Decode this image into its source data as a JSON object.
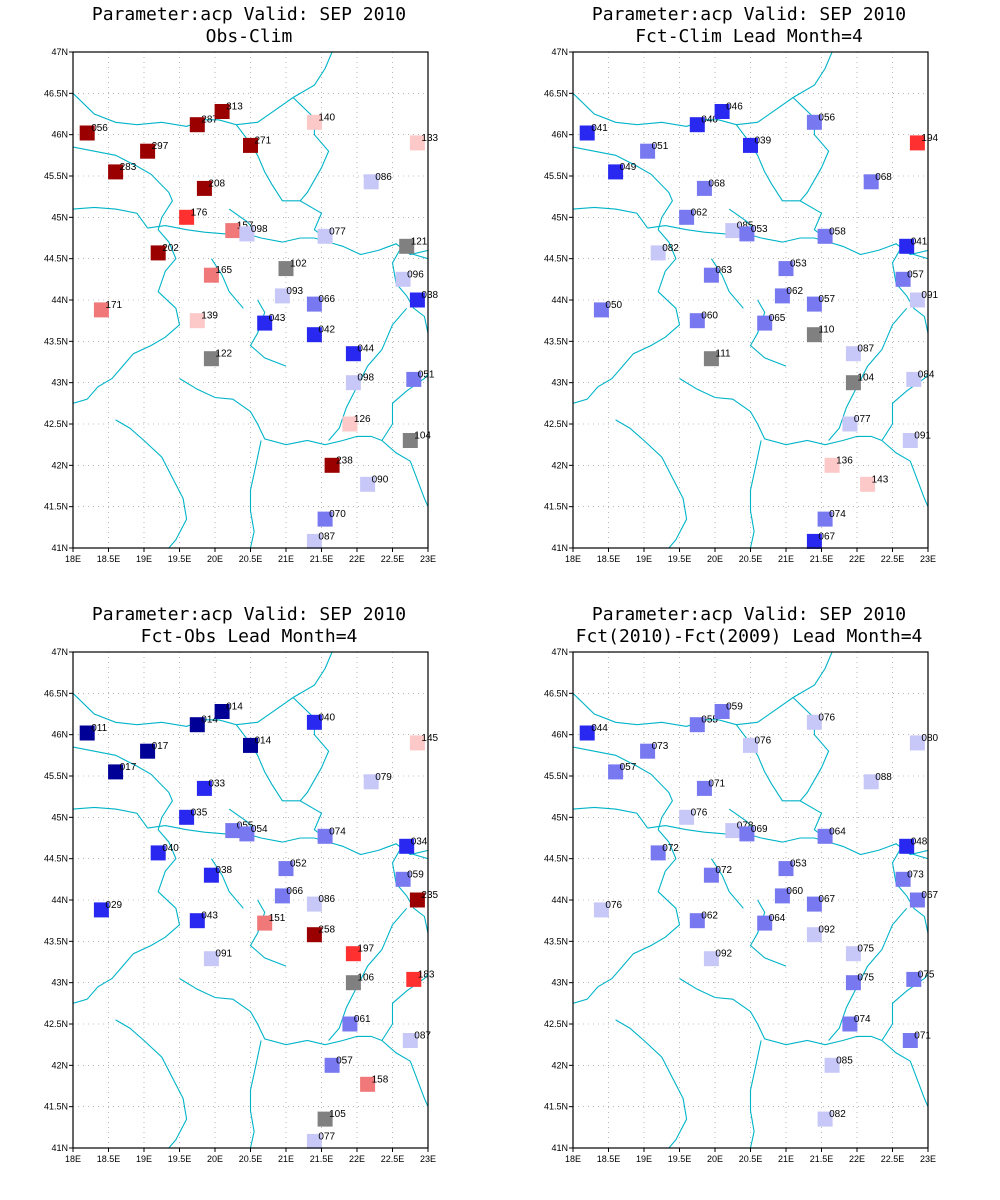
{
  "panels": [
    {
      "title1": "Parameter:acp Valid: SEP 2010",
      "title2": "Obs-Clim",
      "points": [
        {
          "lon": 18.2,
          "lat": 46.02,
          "label": "056",
          "color": "#9b0000"
        },
        {
          "lon": 18.6,
          "lat": 45.55,
          "label": "283",
          "color": "#9b0000"
        },
        {
          "lon": 19.05,
          "lat": 45.8,
          "label": "297",
          "color": "#9b0000"
        },
        {
          "lon": 19.75,
          "lat": 46.12,
          "label": "287",
          "color": "#9b0000"
        },
        {
          "lon": 20.1,
          "lat": 46.28,
          "label": "313",
          "color": "#9b0000"
        },
        {
          "lon": 20.5,
          "lat": 45.87,
          "label": "271",
          "color": "#9b0000"
        },
        {
          "lon": 19.85,
          "lat": 45.35,
          "label": "208",
          "color": "#9b0000"
        },
        {
          "lon": 19.6,
          "lat": 45.0,
          "label": "176",
          "color": "#ff3030"
        },
        {
          "lon": 20.25,
          "lat": 44.84,
          "label": "157",
          "color": "#f07878"
        },
        {
          "lon": 20.45,
          "lat": 44.8,
          "label": "098",
          "color": "#c8c8f8"
        },
        {
          "lon": 19.2,
          "lat": 44.57,
          "label": "202",
          "color": "#9b0000"
        },
        {
          "lon": 19.95,
          "lat": 44.3,
          "label": "165",
          "color": "#f07878"
        },
        {
          "lon": 21.4,
          "lat": 46.15,
          "label": "140",
          "color": "#fcc8c8"
        },
        {
          "lon": 22.85,
          "lat": 45.9,
          "label": "133",
          "color": "#fcc8c8"
        },
        {
          "lon": 22.2,
          "lat": 45.43,
          "label": "086",
          "color": "#c8c8f8"
        },
        {
          "lon": 21.55,
          "lat": 44.77,
          "label": "077",
          "color": "#c8c8f8"
        },
        {
          "lon": 22.7,
          "lat": 44.65,
          "label": "121",
          "color": "#808080"
        },
        {
          "lon": 21.0,
          "lat": 44.38,
          "label": "102",
          "color": "#808080"
        },
        {
          "lon": 22.65,
          "lat": 44.25,
          "label": "096",
          "color": "#c8c8f8"
        },
        {
          "lon": 22.85,
          "lat": 44.0,
          "label": "038",
          "color": "#2828f0"
        },
        {
          "lon": 20.95,
          "lat": 44.05,
          "label": "093",
          "color": "#c8c8f8"
        },
        {
          "lon": 21.4,
          "lat": 43.95,
          "label": "066",
          "color": "#7878f0"
        },
        {
          "lon": 18.4,
          "lat": 43.88,
          "label": "171",
          "color": "#f07878"
        },
        {
          "lon": 19.75,
          "lat": 43.75,
          "label": "139",
          "color": "#fcc8c8"
        },
        {
          "lon": 20.7,
          "lat": 43.72,
          "label": "043",
          "color": "#2828f0"
        },
        {
          "lon": 21.4,
          "lat": 43.58,
          "label": "042",
          "color": "#2828f0"
        },
        {
          "lon": 19.95,
          "lat": 43.29,
          "label": "122",
          "color": "#808080"
        },
        {
          "lon": 21.95,
          "lat": 43.35,
          "label": "044",
          "color": "#2828f0"
        },
        {
          "lon": 21.95,
          "lat": 43.0,
          "label": "098",
          "color": "#c8c8f8"
        },
        {
          "lon": 22.8,
          "lat": 43.04,
          "label": "051",
          "color": "#7878f0"
        },
        {
          "lon": 21.9,
          "lat": 42.5,
          "label": "126",
          "color": "#fcc8c8"
        },
        {
          "lon": 22.75,
          "lat": 42.3,
          "label": "104",
          "color": "#808080"
        },
        {
          "lon": 21.65,
          "lat": 42.0,
          "label": "238",
          "color": "#9b0000"
        },
        {
          "lon": 22.15,
          "lat": 41.77,
          "label": "090",
          "color": "#c8c8f8"
        },
        {
          "lon": 21.55,
          "lat": 41.35,
          "label": "070",
          "color": "#7878f0"
        },
        {
          "lon": 21.4,
          "lat": 41.08,
          "label": "087",
          "color": "#c8c8f8"
        }
      ]
    },
    {
      "title1": "Parameter:acp Valid: SEP 2010",
      "title2": "Fct-Clim Lead Month=4",
      "points": [
        {
          "lon": 18.2,
          "lat": 46.02,
          "label": "041",
          "color": "#2828f0"
        },
        {
          "lon": 18.6,
          "lat": 45.55,
          "label": "049",
          "color": "#2828f0"
        },
        {
          "lon": 19.05,
          "lat": 45.8,
          "label": "051",
          "color": "#7878f0"
        },
        {
          "lon": 19.75,
          "lat": 46.12,
          "label": "040",
          "color": "#2828f0"
        },
        {
          "lon": 20.1,
          "lat": 46.28,
          "label": "046",
          "color": "#2828f0"
        },
        {
          "lon": 20.5,
          "lat": 45.87,
          "label": "039",
          "color": "#2828f0"
        },
        {
          "lon": 19.85,
          "lat": 45.35,
          "label": "068",
          "color": "#7878f0"
        },
        {
          "lon": 19.6,
          "lat": 45.0,
          "label": "062",
          "color": "#7878f0"
        },
        {
          "lon": 20.25,
          "lat": 44.84,
          "label": "085",
          "color": "#c8c8f8"
        },
        {
          "lon": 20.45,
          "lat": 44.8,
          "label": "053",
          "color": "#7878f0"
        },
        {
          "lon": 19.2,
          "lat": 44.57,
          "label": "082",
          "color": "#c8c8f8"
        },
        {
          "lon": 19.95,
          "lat": 44.3,
          "label": "063",
          "color": "#7878f0"
        },
        {
          "lon": 21.4,
          "lat": 46.15,
          "label": "056",
          "color": "#7878f0"
        },
        {
          "lon": 22.85,
          "lat": 45.9,
          "label": "194",
          "color": "#ff3030"
        },
        {
          "lon": 22.2,
          "lat": 45.43,
          "label": "068",
          "color": "#7878f0"
        },
        {
          "lon": 21.55,
          "lat": 44.77,
          "label": "058",
          "color": "#7878f0"
        },
        {
          "lon": 22.7,
          "lat": 44.65,
          "label": "041",
          "color": "#2828f0"
        },
        {
          "lon": 21.0,
          "lat": 44.38,
          "label": "053",
          "color": "#7878f0"
        },
        {
          "lon": 22.65,
          "lat": 44.25,
          "label": "057",
          "color": "#7878f0"
        },
        {
          "lon": 22.85,
          "lat": 44.0,
          "label": "091",
          "color": "#c8c8f8"
        },
        {
          "lon": 20.95,
          "lat": 44.05,
          "label": "062",
          "color": "#7878f0"
        },
        {
          "lon": 21.4,
          "lat": 43.95,
          "label": "057",
          "color": "#7878f0"
        },
        {
          "lon": 18.4,
          "lat": 43.88,
          "label": "050",
          "color": "#7878f0"
        },
        {
          "lon": 19.75,
          "lat": 43.75,
          "label": "060",
          "color": "#7878f0"
        },
        {
          "lon": 20.7,
          "lat": 43.72,
          "label": "065",
          "color": "#7878f0"
        },
        {
          "lon": 21.4,
          "lat": 43.58,
          "label": "110",
          "color": "#808080"
        },
        {
          "lon": 19.95,
          "lat": 43.29,
          "label": "111",
          "color": "#808080"
        },
        {
          "lon": 21.95,
          "lat": 43.35,
          "label": "087",
          "color": "#c8c8f8"
        },
        {
          "lon": 21.95,
          "lat": 43.0,
          "label": "104",
          "color": "#808080"
        },
        {
          "lon": 22.8,
          "lat": 43.04,
          "label": "084",
          "color": "#c8c8f8"
        },
        {
          "lon": 21.9,
          "lat": 42.5,
          "label": "077",
          "color": "#c8c8f8"
        },
        {
          "lon": 22.75,
          "lat": 42.3,
          "label": "091",
          "color": "#c8c8f8"
        },
        {
          "lon": 21.65,
          "lat": 42.0,
          "label": "136",
          "color": "#fcc8c8"
        },
        {
          "lon": 22.15,
          "lat": 41.77,
          "label": "143",
          "color": "#fcc8c8"
        },
        {
          "lon": 21.55,
          "lat": 41.35,
          "label": "074",
          "color": "#7878f0"
        },
        {
          "lon": 21.4,
          "lat": 41.08,
          "label": "067",
          "color": "#2828f0"
        }
      ]
    },
    {
      "title1": "Parameter:acp Valid: SEP 2010",
      "title2": "Fct-Obs Lead Month=4",
      "points": [
        {
          "lon": 18.2,
          "lat": 46.02,
          "label": "011",
          "color": "#000096"
        },
        {
          "lon": 18.6,
          "lat": 45.55,
          "label": "017",
          "color": "#000096"
        },
        {
          "lon": 19.05,
          "lat": 45.8,
          "label": "017",
          "color": "#000096"
        },
        {
          "lon": 19.75,
          "lat": 46.12,
          "label": "014",
          "color": "#000096"
        },
        {
          "lon": 20.1,
          "lat": 46.28,
          "label": "014",
          "color": "#000096"
        },
        {
          "lon": 20.5,
          "lat": 45.87,
          "label": "014",
          "color": "#000096"
        },
        {
          "lon": 19.85,
          "lat": 45.35,
          "label": "033",
          "color": "#2828f0"
        },
        {
          "lon": 19.6,
          "lat": 45.0,
          "label": "035",
          "color": "#2828f0"
        },
        {
          "lon": 20.25,
          "lat": 44.84,
          "label": "055",
          "color": "#7878f0"
        },
        {
          "lon": 20.45,
          "lat": 44.8,
          "label": "054",
          "color": "#7878f0"
        },
        {
          "lon": 19.2,
          "lat": 44.57,
          "label": "040",
          "color": "#2828f0"
        },
        {
          "lon": 19.95,
          "lat": 44.3,
          "label": "038",
          "color": "#2828f0"
        },
        {
          "lon": 21.4,
          "lat": 46.15,
          "label": "040",
          "color": "#2828f0"
        },
        {
          "lon": 22.85,
          "lat": 45.9,
          "label": "145",
          "color": "#fcc8c8"
        },
        {
          "lon": 22.2,
          "lat": 45.43,
          "label": "079",
          "color": "#c8c8f8"
        },
        {
          "lon": 21.55,
          "lat": 44.77,
          "label": "074",
          "color": "#7878f0"
        },
        {
          "lon": 22.7,
          "lat": 44.65,
          "label": "034",
          "color": "#2828f0"
        },
        {
          "lon": 21.0,
          "lat": 44.38,
          "label": "052",
          "color": "#7878f0"
        },
        {
          "lon": 22.65,
          "lat": 44.25,
          "label": "059",
          "color": "#7878f0"
        },
        {
          "lon": 22.85,
          "lat": 44.0,
          "label": "235",
          "color": "#9b0000"
        },
        {
          "lon": 20.95,
          "lat": 44.05,
          "label": "066",
          "color": "#7878f0"
        },
        {
          "lon": 21.4,
          "lat": 43.95,
          "label": "086",
          "color": "#c8c8f8"
        },
        {
          "lon": 18.4,
          "lat": 43.88,
          "label": "029",
          "color": "#2828f0"
        },
        {
          "lon": 19.75,
          "lat": 43.75,
          "label": "043",
          "color": "#2828f0"
        },
        {
          "lon": 20.7,
          "lat": 43.72,
          "label": "151",
          "color": "#f07878"
        },
        {
          "lon": 21.4,
          "lat": 43.58,
          "label": "258",
          "color": "#9b0000"
        },
        {
          "lon": 19.95,
          "lat": 43.29,
          "label": "091",
          "color": "#c8c8f8"
        },
        {
          "lon": 21.95,
          "lat": 43.35,
          "label": "197",
          "color": "#ff3030"
        },
        {
          "lon": 21.95,
          "lat": 43.0,
          "label": "106",
          "color": "#808080"
        },
        {
          "lon": 22.8,
          "lat": 43.04,
          "label": "183",
          "color": "#ff3030"
        },
        {
          "lon": 21.9,
          "lat": 42.5,
          "label": "061",
          "color": "#7878f0"
        },
        {
          "lon": 22.75,
          "lat": 42.3,
          "label": "087",
          "color": "#c8c8f8"
        },
        {
          "lon": 21.65,
          "lat": 42.0,
          "label": "057",
          "color": "#7878f0"
        },
        {
          "lon": 22.15,
          "lat": 41.77,
          "label": "158",
          "color": "#f07878"
        },
        {
          "lon": 21.55,
          "lat": 41.35,
          "label": "105",
          "color": "#808080"
        },
        {
          "lon": 21.4,
          "lat": 41.08,
          "label": "077",
          "color": "#c8c8f8"
        }
      ]
    },
    {
      "title1": "Parameter:acp Valid: SEP 2010",
      "title2": "Fct(2010)-Fct(2009) Lead Month=4",
      "points": [
        {
          "lon": 18.2,
          "lat": 46.02,
          "label": "044",
          "color": "#2828f0"
        },
        {
          "lon": 18.6,
          "lat": 45.55,
          "label": "057",
          "color": "#7878f0"
        },
        {
          "lon": 19.05,
          "lat": 45.8,
          "label": "073",
          "color": "#7878f0"
        },
        {
          "lon": 19.75,
          "lat": 46.12,
          "label": "055",
          "color": "#7878f0"
        },
        {
          "lon": 20.1,
          "lat": 46.28,
          "label": "059",
          "color": "#7878f0"
        },
        {
          "lon": 20.5,
          "lat": 45.87,
          "label": "076",
          "color": "#c8c8f8"
        },
        {
          "lon": 19.85,
          "lat": 45.35,
          "label": "071",
          "color": "#7878f0"
        },
        {
          "lon": 19.6,
          "lat": 45.0,
          "label": "076",
          "color": "#c8c8f8"
        },
        {
          "lon": 20.25,
          "lat": 44.84,
          "label": "078",
          "color": "#c8c8f8"
        },
        {
          "lon": 20.45,
          "lat": 44.8,
          "label": "069",
          "color": "#7878f0"
        },
        {
          "lon": 19.2,
          "lat": 44.57,
          "label": "072",
          "color": "#7878f0"
        },
        {
          "lon": 19.95,
          "lat": 44.3,
          "label": "072",
          "color": "#7878f0"
        },
        {
          "lon": 21.4,
          "lat": 46.15,
          "label": "076",
          "color": "#c8c8f8"
        },
        {
          "lon": 22.85,
          "lat": 45.9,
          "label": "080",
          "color": "#c8c8f8"
        },
        {
          "lon": 22.2,
          "lat": 45.43,
          "label": "088",
          "color": "#c8c8f8"
        },
        {
          "lon": 21.55,
          "lat": 44.77,
          "label": "064",
          "color": "#7878f0"
        },
        {
          "lon": 22.7,
          "lat": 44.65,
          "label": "048",
          "color": "#2828f0"
        },
        {
          "lon": 21.0,
          "lat": 44.38,
          "label": "053",
          "color": "#7878f0"
        },
        {
          "lon": 22.65,
          "lat": 44.25,
          "label": "073",
          "color": "#7878f0"
        },
        {
          "lon": 22.85,
          "lat": 44.0,
          "label": "067",
          "color": "#7878f0"
        },
        {
          "lon": 20.95,
          "lat": 44.05,
          "label": "060",
          "color": "#7878f0"
        },
        {
          "lon": 21.4,
          "lat": 43.95,
          "label": "067",
          "color": "#7878f0"
        },
        {
          "lon": 18.4,
          "lat": 43.88,
          "label": "076",
          "color": "#c8c8f8"
        },
        {
          "lon": 19.75,
          "lat": 43.75,
          "label": "062",
          "color": "#7878f0"
        },
        {
          "lon": 20.7,
          "lat": 43.72,
          "label": "064",
          "color": "#7878f0"
        },
        {
          "lon": 21.4,
          "lat": 43.58,
          "label": "092",
          "color": "#c8c8f8"
        },
        {
          "lon": 19.95,
          "lat": 43.29,
          "label": "092",
          "color": "#c8c8f8"
        },
        {
          "lon": 21.95,
          "lat": 43.35,
          "label": "075",
          "color": "#c8c8f8"
        },
        {
          "lon": 21.95,
          "lat": 43.0,
          "label": "075",
          "color": "#7878f0"
        },
        {
          "lon": 22.8,
          "lat": 43.04,
          "label": "075",
          "color": "#7878f0"
        },
        {
          "lon": 21.9,
          "lat": 42.5,
          "label": "074",
          "color": "#7878f0"
        },
        {
          "lon": 22.75,
          "lat": 42.3,
          "label": "071",
          "color": "#7878f0"
        },
        {
          "lon": 21.65,
          "lat": 42.0,
          "label": "085",
          "color": "#c8c8f8"
        },
        {
          "lon": 21.55,
          "lat": 41.35,
          "label": "082",
          "color": "#c8c8f8"
        }
      ]
    }
  ],
  "axes": {
    "lon_ticks": [
      "18E",
      "18.5E",
      "19E",
      "19.5E",
      "20E",
      "20.5E",
      "21E",
      "21.5E",
      "22E",
      "22.5E",
      "23E"
    ],
    "lat_ticks": [
      "41N",
      "41.5N",
      "42N",
      "42.5N",
      "43N",
      "43.5N",
      "44N",
      "44.5N",
      "45N",
      "45.5N",
      "46N",
      "46.5N",
      "47N"
    ],
    "lon_range": [
      18,
      23
    ],
    "lat_range": [
      41,
      47
    ]
  },
  "colors": {
    "border_lines": "#00b4c8"
  }
}
